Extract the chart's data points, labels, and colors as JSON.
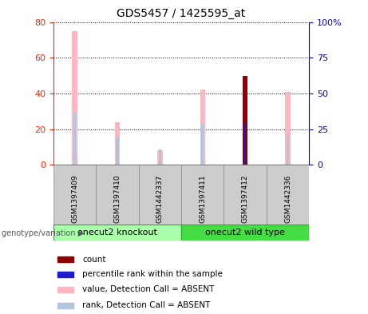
{
  "title": "GDS5457 / 1425595_at",
  "samples": [
    "GSM1397409",
    "GSM1397410",
    "GSM1442337",
    "GSM1397411",
    "GSM1397412",
    "GSM1442336"
  ],
  "value_absent": [
    75,
    24,
    8,
    42,
    null,
    41
  ],
  "rank_absent": [
    36,
    20,
    11,
    28,
    null,
    21
  ],
  "count_value": [
    null,
    null,
    null,
    null,
    50,
    null
  ],
  "percentile_rank": [
    null,
    null,
    null,
    null,
    30,
    null
  ],
  "ylim_left": [
    0,
    80
  ],
  "ylim_right": [
    0,
    100
  ],
  "yticks_left": [
    0,
    20,
    40,
    60,
    80
  ],
  "yticks_right": [
    0,
    25,
    50,
    75,
    100
  ],
  "ytick_labels_right": [
    "0",
    "25",
    "50",
    "75",
    "100%"
  ],
  "color_value_absent": "#FFB6C1",
  "color_rank_absent": "#B0C4DE",
  "color_count": "#8B0000",
  "color_percentile": "#1C1CCD",
  "left_axis_color": "#FF2200",
  "right_axis_color": "#0000CC",
  "group1_label": "onecut2 knockout",
  "group2_label": "onecut2 wild type",
  "group1_color": "#AAFFAA",
  "group2_color": "#44DD44",
  "group_label": "genotype/variation",
  "legend_items": [
    {
      "label": "count",
      "color": "#8B0000"
    },
    {
      "label": "percentile rank within the sample",
      "color": "#1C1CCD"
    },
    {
      "label": "value, Detection Call = ABSENT",
      "color": "#FFB6C1"
    },
    {
      "label": "rank, Detection Call = ABSENT",
      "color": "#B0C4DE"
    }
  ]
}
